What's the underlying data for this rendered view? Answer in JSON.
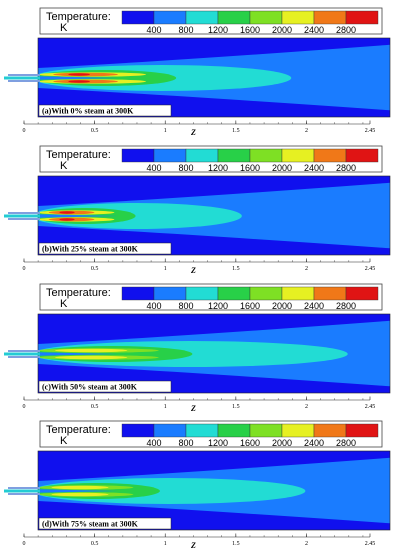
{
  "chart_data": {
    "type": "heatmap",
    "colorbar": {
      "title_line1": "Temperature:",
      "title_line2": "K",
      "ticks": [
        "400",
        "800",
        "1200",
        "1600",
        "2000",
        "2400",
        "2800"
      ],
      "tick_values": [
        400,
        800,
        1200,
        1600,
        2000,
        2400,
        2800
      ],
      "range": [
        200,
        3000
      ],
      "colors": [
        "#1010ee",
        "#1a7cff",
        "#22dcd4",
        "#28d048",
        "#7ee024",
        "#e6f022",
        "#f07818",
        "#e01414"
      ]
    },
    "x_axis": {
      "label": "Z",
      "ticks": [
        "0",
        "0.5",
        "1",
        "1.5",
        "2",
        "2.45"
      ],
      "tick_values": [
        0,
        0.5,
        1,
        1.5,
        2,
        2.45
      ],
      "range": [
        0,
        2.45
      ]
    },
    "panels": [
      {
        "caption": "(a)With 0% steam at 300K",
        "steam_percent": 0,
        "flame_length": 1.85,
        "hot_length": 0.95
      },
      {
        "caption": "(b)With 25% steam at 300K",
        "steam_percent": 25,
        "flame_length": 1.5,
        "hot_length": 0.7
      },
      {
        "caption": "(c)With 50% steam at 300K",
        "steam_percent": 50,
        "flame_length": 2.25,
        "hot_length": 1.05
      },
      {
        "caption": "(d)With 75% steam at 300K",
        "steam_percent": 75,
        "flame_length": 1.95,
        "hot_length": 0.85
      }
    ]
  }
}
